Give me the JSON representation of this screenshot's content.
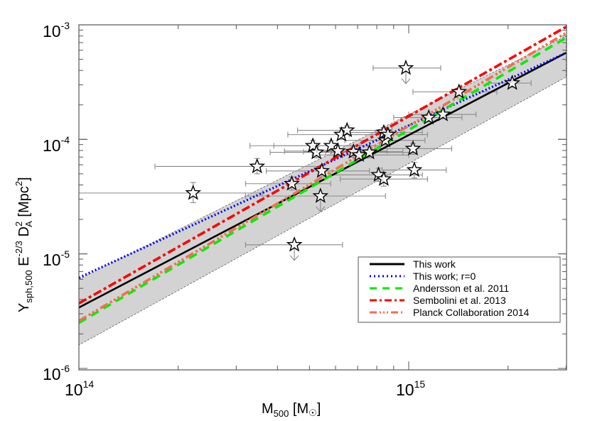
{
  "chart_data": {
    "type": "scatter",
    "title": "",
    "xlabel": "M500 [M☉]",
    "ylabel": "Ysph,500 E^-2/3 D_A^2 [Mpc^2]",
    "xscale": "log",
    "yscale": "log",
    "xlim": [
      100000000000000.0,
      3000000000000000.0
    ],
    "ylim": [
      1e-06,
      0.001
    ],
    "x_ticks": [
      {
        "base": "10",
        "exp": "14",
        "value": 100000000000000.0
      },
      {
        "base": "10",
        "exp": "15",
        "value": 1000000000000000.0
      }
    ],
    "y_ticks": [
      {
        "base": "10",
        "exp": "-3",
        "value": 0.001
      },
      {
        "base": "10",
        "exp": "-4",
        "value": 0.0001
      },
      {
        "base": "10",
        "exp": "-5",
        "value": 1e-05
      },
      {
        "base": "10",
        "exp": "-6",
        "value": 1e-06
      }
    ],
    "grid": false,
    "legend_position": "lower right",
    "scatter_points": [
      {
        "x": 222000000000000.0,
        "y": 3.4e-05,
        "xerr": [
          100000000000000.0,
          360000000000000.0
        ],
        "yerr": [
          2.8e-05,
          4.2e-05
        ],
        "upper_limit": false
      },
      {
        "x": 347000000000000.0,
        "y": 5.8e-05,
        "xerr": [
          170000000000000.0,
          550000000000000.0
        ],
        "yerr": [
          5e-05,
          6.8e-05
        ],
        "upper_limit": false
      },
      {
        "x": 442000000000000.0,
        "y": 4.1e-05,
        "xerr": [
          320000000000000.0,
          580000000000000.0
        ],
        "yerr": [
          3.6e-05,
          4.7e-05
        ],
        "upper_limit": false
      },
      {
        "x": 512000000000000.0,
        "y": 8.8e-05,
        "xerr": [
          330000000000000.0,
          710000000000000.0
        ],
        "yerr": [
          7.9e-05,
          9.8e-05
        ],
        "upper_limit": false
      },
      {
        "x": 525000000000000.0,
        "y": 7.7e-05,
        "xerr": [
          380000000000000.0,
          740000000000000.0
        ],
        "yerr": [
          6.9e-05,
          8.6e-05
        ],
        "upper_limit": false
      },
      {
        "x": 540000000000000.0,
        "y": 3.2e-05,
        "xerr": [
          320000000000000.0,
          850000000000000.0
        ],
        "yerr": null,
        "upper_limit": true
      },
      {
        "x": 545000000000000.0,
        "y": 5.3e-05,
        "xerr": [
          370000000000000.0,
          760000000000000.0
        ],
        "yerr": [
          4.7e-05,
          5.9e-05
        ],
        "upper_limit": false
      },
      {
        "x": 582000000000000.0,
        "y": 8.8e-05,
        "xerr": [
          390000000000000.0,
          820000000000000.0
        ],
        "yerr": [
          8e-05,
          9.7e-05
        ],
        "upper_limit": false
      },
      {
        "x": 610000000000000.0,
        "y": 7.9e-05,
        "xerr": [
          420000000000000.0,
          860000000000000.0
        ],
        "yerr": [
          7.1e-05,
          8.8e-05
        ],
        "upper_limit": false
      },
      {
        "x": 625000000000000.0,
        "y": 0.00011,
        "xerr": [
          430000000000000.0,
          860000000000000.0
        ],
        "yerr": [
          0.0001,
          0.00012
        ],
        "upper_limit": false
      },
      {
        "x": 650000000000000.0,
        "y": 0.00012,
        "xerr": [
          460000000000000.0,
          890000000000000.0
        ],
        "yerr": [
          0.00011,
          0.000131
        ],
        "upper_limit": false
      },
      {
        "x": 680000000000000.0,
        "y": 7.8e-05,
        "xerr": [
          480000000000000.0,
          960000000000000.0
        ],
        "yerr": [
          7e-05,
          8.7e-05
        ],
        "upper_limit": false
      },
      {
        "x": 707000000000000.0,
        "y": 7.3e-05,
        "xerr": [
          510000000000000.0,
          1000000000000000.0
        ],
        "yerr": [
          6.5e-05,
          8.1e-05
        ],
        "upper_limit": false
      },
      {
        "x": 760000000000000.0,
        "y": 7.7e-05,
        "xerr": [
          560000000000000.0,
          1060000000000000.0
        ],
        "yerr": [
          6.9e-05,
          8.6e-05
        ],
        "upper_limit": false
      },
      {
        "x": 810000000000000.0,
        "y": 4.9e-05,
        "xerr": [
          580000000000000.0,
          1100000000000000.0
        ],
        "yerr": [
          4.3e-05,
          5.6e-05
        ],
        "upper_limit": false
      },
      {
        "x": 840000000000000.0,
        "y": 4.5e-05,
        "xerr": [
          620000000000000.0,
          1140000000000000.0
        ],
        "yerr": [
          3.9e-05,
          5.1e-05
        ],
        "upper_limit": false
      },
      {
        "x": 840000000000000.0,
        "y": 0.000115,
        "xerr": [
          630000000000000.0,
          1100000000000000.0
        ],
        "yerr": [
          0.000103,
          0.000127
        ],
        "upper_limit": false
      },
      {
        "x": 850000000000000.0,
        "y": 9.8e-05,
        "xerr": [
          640000000000000.0,
          1120000000000000.0
        ],
        "yerr": [
          8.9e-05,
          0.000108
        ],
        "upper_limit": false
      },
      {
        "x": 865000000000000.0,
        "y": 0.00011,
        "xerr": [
          660000000000000.0,
          1140000000000000.0
        ],
        "yerr": [
          0.0001,
          0.00012
        ],
        "upper_limit": false
      },
      {
        "x": 450000000000000.0,
        "y": 1.2e-05,
        "xerr": [
          320000000000000.0,
          630000000000000.0
        ],
        "yerr": null,
        "upper_limit": true
      },
      {
        "x": 980000000000000.0,
        "y": 0.00042,
        "xerr": [
          780000000000000.0,
          1250000000000000.0
        ],
        "yerr": null,
        "upper_limit": true
      },
      {
        "x": 1030000000000000.0,
        "y": 8.3e-05,
        "xerr": [
          790000000000000.0,
          1350000000000000.0
        ],
        "yerr": [
          7.4e-05,
          9.2e-05
        ],
        "upper_limit": false
      },
      {
        "x": 1040000000000000.0,
        "y": 5.4e-05,
        "xerr": [
          830000000000000.0,
          1300000000000000.0
        ],
        "yerr": [
          4.6e-05,
          6.3e-05
        ],
        "upper_limit": false
      },
      {
        "x": 1150000000000000.0,
        "y": 0.000155,
        "xerr": [
          900000000000000.0,
          1450000000000000.0
        ],
        "yerr": [
          0.000142,
          0.000168
        ],
        "upper_limit": false
      },
      {
        "x": 1270000000000000.0,
        "y": 0.000165,
        "xerr": [
          1000000000000000.0,
          1600000000000000.0
        ],
        "yerr": [
          0.000152,
          0.000178
        ],
        "upper_limit": false
      },
      {
        "x": 1420000000000000.0,
        "y": 0.00026,
        "xerr": [
          1030000000000000.0,
          1850000000000000.0
        ],
        "yerr": [
          0.00024,
          0.00028
        ],
        "upper_limit": false
      },
      {
        "x": 2060000000000000.0,
        "y": 0.00031,
        "xerr": [
          1750000000000000.0,
          2350000000000000.0
        ],
        "yerr": [
          0.000285,
          0.000335
        ],
        "upper_limit": false
      }
    ],
    "confidence_band": {
      "x": [
        100000000000000.0,
        3000000000000000.0
      ],
      "lower": [
        1.6e-06,
        0.00035
      ],
      "upper": [
        6e-06,
        0.0008
      ],
      "color": "#d3d3d3"
    },
    "series": [
      {
        "name": "This work",
        "x": [
          100000000000000.0,
          3000000000000000.0
        ],
        "values": [
          3.4e-06,
          0.00057
        ],
        "color": "#000000",
        "style": "solid"
      },
      {
        "name": "This work; r=0",
        "x": [
          100000000000000.0,
          3000000000000000.0
        ],
        "values": [
          6.2e-06,
          0.00057
        ],
        "color": "#0000ff",
        "style": "dotted"
      },
      {
        "name": "Andersson et al. 2011",
        "x": [
          100000000000000.0,
          3000000000000000.0
        ],
        "values": [
          2.5e-06,
          0.00077
        ],
        "color": "#00ee00",
        "style": "dashed"
      },
      {
        "name": "Sembolini et al. 2013",
        "x": [
          100000000000000.0,
          3000000000000000.0
        ],
        "values": [
          3.7e-06,
          0.00096
        ],
        "color": "#ff0000",
        "style": "dashdot"
      },
      {
        "name": "Planck Collaboration 2014",
        "x": [
          100000000000000.0,
          3000000000000000.0
        ],
        "values": [
          2.6e-06,
          0.00085
        ],
        "color": "#fa6a50",
        "style": "dashdotdot"
      }
    ]
  },
  "axes": {
    "x_title_main": "M",
    "x_title_sub": "500",
    "x_title_rest_open": " [M",
    "x_title_sun": "☉",
    "x_title_rest_close": "]",
    "y_title_main": "Y",
    "y_title_sub": "sph,500",
    "y_title_e": " E",
    "y_title_e_sup": "-2/3",
    "y_title_d": " D",
    "y_title_d_sup": "2",
    "y_title_d_sub": "A",
    "y_title_unit": " [Mpc",
    "y_title_unit_sup": "2",
    "y_title_close": "]"
  },
  "legend": {
    "items": [
      {
        "label": "This work"
      },
      {
        "label": "This work; r=0"
      },
      {
        "label": "Andersson et al. 2011"
      },
      {
        "label": "Sembolini et al. 2013"
      },
      {
        "label": "Planck Collaboration 2014"
      }
    ]
  }
}
